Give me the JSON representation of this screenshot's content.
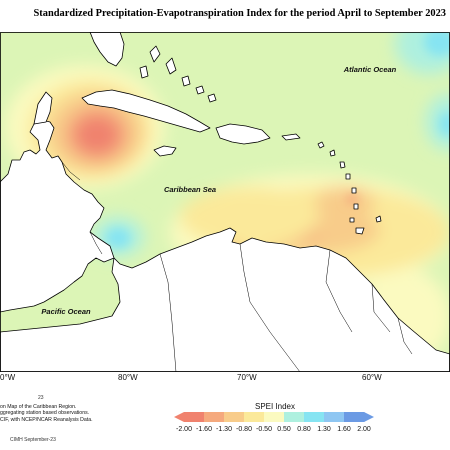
{
  "title": "Standardized Precipitation-Evapotranspiration Index for the period April to September 2023",
  "map_labels": {
    "atlantic": "Atlantic Ocean",
    "caribbean": "Caribbean Sea",
    "pacific": "Pacific Ocean"
  },
  "longitude_ticks": [
    "0°W",
    "80°W",
    "70°W",
    "60°W"
  ],
  "footnote_number": "23",
  "description_lines": [
    "on Map of the Caribbean Region.",
    "ggregating station based observations.",
    "CIF, with NCEP/NCAR Reanalysis Data."
  ],
  "credit": "CIMH September-23",
  "legend": {
    "title": "SPEI Index",
    "ticks": [
      "-2.00",
      "-1.60",
      "-1.30",
      "-0.80",
      "-0.50",
      "0.50",
      "0.80",
      "1.30",
      "1.60",
      "2.00"
    ],
    "colors": [
      "#f0826e",
      "#f5a97d",
      "#f8cc8a",
      "#fbe99a",
      "#fbfac0",
      "#dcf5b6",
      "#aef0df",
      "#86e4f2",
      "#8ec6f2",
      "#6b9ae4"
    ]
  }
}
